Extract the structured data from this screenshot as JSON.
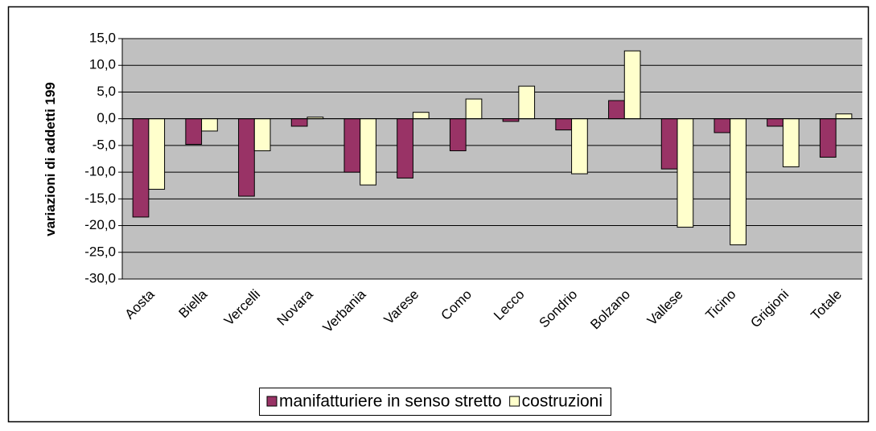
{
  "chart_data": {
    "type": "bar",
    "y_label": "variazioni di addetti 199",
    "categories": [
      "Aosta",
      "Biella",
      "Vercelli",
      "Novara",
      "Verbania",
      "Varese",
      "Como",
      "Lecco",
      "Sondrio",
      "Bolzano",
      "Vallese",
      "Ticino",
      "Grigioni",
      "Totale"
    ],
    "series": [
      {
        "name": "manifatturiere in senso stretto",
        "color": "#993366",
        "values": [
          -18.4,
          -4.8,
          -14.5,
          -1.4,
          -10.0,
          -11.1,
          -6.0,
          -0.5,
          -2.1,
          3.4,
          -9.4,
          -2.6,
          -1.4,
          -7.2
        ]
      },
      {
        "name": "costruzioni",
        "color": "#ffffcc",
        "values": [
          -13.2,
          -2.3,
          -6.0,
          0.3,
          -12.4,
          1.2,
          3.7,
          6.1,
          -10.3,
          12.7,
          -20.3,
          -23.6,
          -9.0,
          0.9
        ]
      }
    ],
    "ylim": [
      -30,
      15
    ],
    "yticks": [
      {
        "value": -30,
        "label": "-30,0"
      },
      {
        "value": -25,
        "label": "-25,0"
      },
      {
        "value": -20,
        "label": "-20,0"
      },
      {
        "value": -15,
        "label": "-15,0"
      },
      {
        "value": -10,
        "label": "-10,0"
      },
      {
        "value": -5,
        "label": "-5,0"
      },
      {
        "value": 0,
        "label": "0,0"
      },
      {
        "value": 5,
        "label": "5,0"
      },
      {
        "value": 10,
        "label": "10,0"
      },
      {
        "value": 15,
        "label": "15,0"
      }
    ],
    "grid": true,
    "legend": "bottom"
  }
}
